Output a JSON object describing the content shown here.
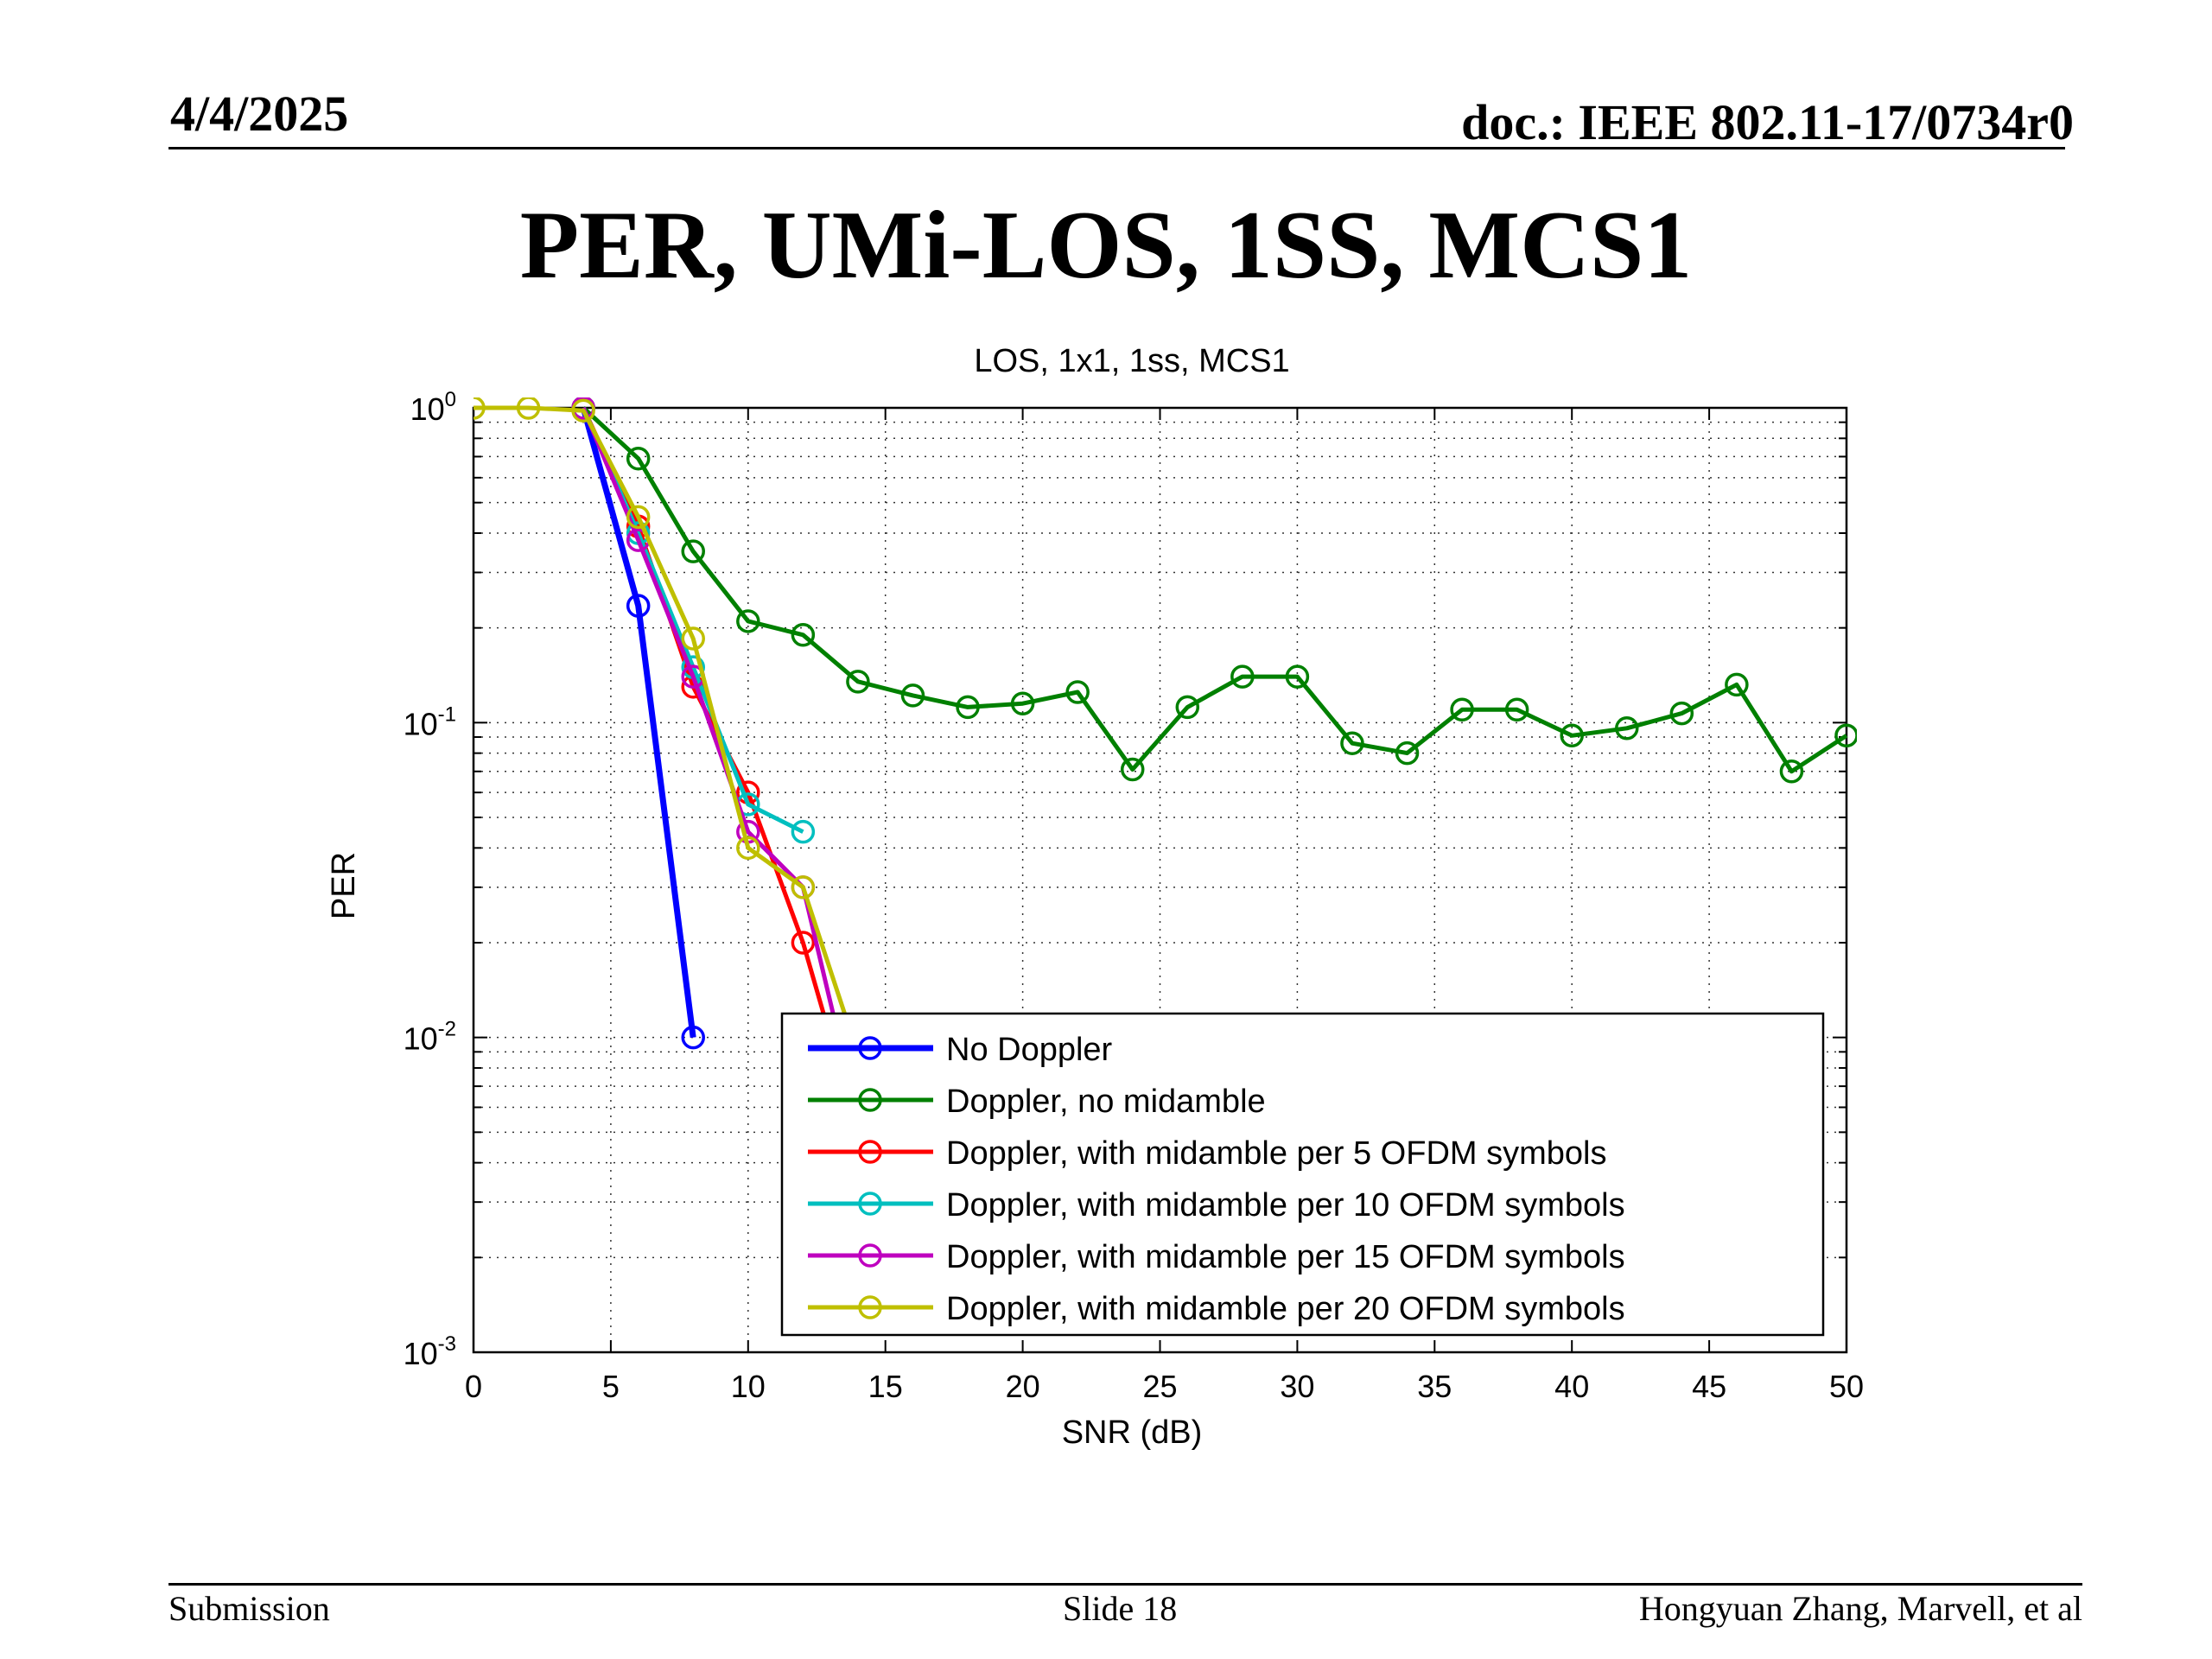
{
  "header": {
    "date": "4/4/2025",
    "doc": "doc.: IEEE 802.11-17/0734r0"
  },
  "slide": {
    "title": "PER, UMi-LOS, 1SS, MCS1"
  },
  "footer": {
    "left": "Submission",
    "center": "Slide 18",
    "right": "Hongyuan Zhang, Marvell, et al"
  },
  "chart_data": {
    "type": "line",
    "title": "LOS, 1x1, 1ss, MCS1",
    "xlabel": "SNR (dB)",
    "ylabel": "PER",
    "xlim": [
      0,
      50
    ],
    "ylim": [
      0.001,
      1
    ],
    "yscale": "log",
    "grid": true,
    "legend_position": "bottom-right",
    "x_ticks": [
      "0",
      "5",
      "10",
      "15",
      "20",
      "25",
      "30",
      "35",
      "40",
      "45",
      "50"
    ],
    "y_ticks": [
      {
        "base": "10",
        "exp": "0"
      },
      {
        "base": "10",
        "exp": "-1"
      },
      {
        "base": "10",
        "exp": "-2"
      },
      {
        "base": "10",
        "exp": "-3"
      }
    ],
    "series": [
      {
        "name": "No Doppler",
        "color": "#0000ff",
        "x": [
          4,
          6,
          8
        ],
        "y": [
          1.0,
          0.235,
          0.01
        ]
      },
      {
        "name": "Doppler, no midamble",
        "color": "#008000",
        "x": [
          4,
          6,
          8,
          10,
          12,
          14,
          16,
          18,
          20,
          22,
          24,
          26,
          28,
          30,
          32,
          34,
          36,
          38,
          40,
          42,
          44,
          46,
          48,
          50
        ],
        "y": [
          1.0,
          0.69,
          0.35,
          0.21,
          0.19,
          0.135,
          0.122,
          0.112,
          0.115,
          0.125,
          0.071,
          0.112,
          0.14,
          0.14,
          0.086,
          0.08,
          0.11,
          0.11,
          0.091,
          0.096,
          0.107,
          0.132,
          0.07,
          0.091
        ]
      },
      {
        "name": "Doppler, with midamble per 5 OFDM symbols",
        "color": "#ff0000",
        "x": [
          4,
          6,
          8,
          10,
          12,
          13
        ],
        "y": [
          1.0,
          0.42,
          0.13,
          0.06,
          0.02,
          0.01
        ]
      },
      {
        "name": "Doppler, with midamble per 10 OFDM symbols",
        "color": "#00bfbf",
        "x": [
          4,
          6,
          8,
          10,
          12
        ],
        "y": [
          1.0,
          0.4,
          0.15,
          0.055,
          0.045
        ]
      },
      {
        "name": "Doppler, with midamble per 15 OFDM symbols",
        "color": "#bf00bf",
        "x": [
          4,
          6,
          8,
          10,
          12,
          13.3
        ],
        "y": [
          1.0,
          0.38,
          0.14,
          0.045,
          0.03,
          0.01
        ]
      },
      {
        "name": "Doppler, with midamble per 20 OFDM symbols",
        "color": "#bfbf00",
        "x": [
          0,
          2,
          4,
          6,
          8,
          10,
          12,
          13.8
        ],
        "y": [
          1.0,
          1.0,
          0.98,
          0.45,
          0.185,
          0.04,
          0.03,
          0.01
        ]
      }
    ]
  }
}
